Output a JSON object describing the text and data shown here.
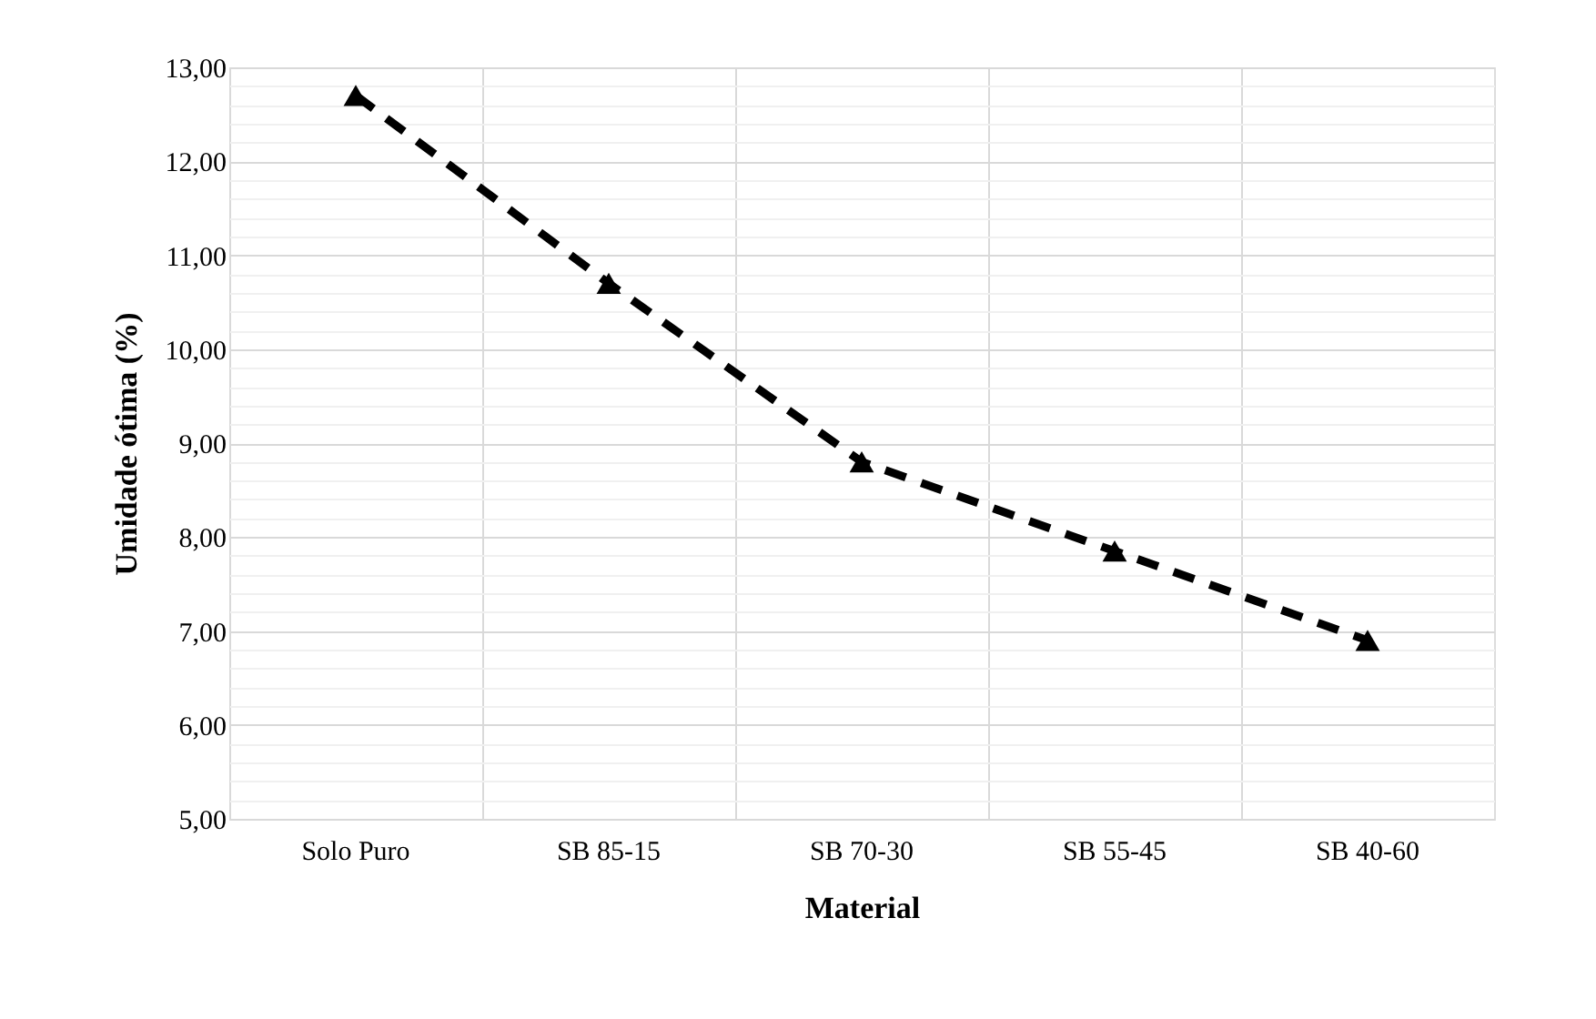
{
  "chart_data": {
    "type": "line",
    "xlabel": "Material",
    "ylabel": "Umidade ótima (%)",
    "categories": [
      "Solo Puro",
      "SB 85-15",
      "SB 70-30",
      "SB 55-45",
      "SB 40-60"
    ],
    "series": [
      {
        "color": "#000000",
        "values": [
          12.7,
          10.7,
          8.8,
          7.85,
          6.9
        ]
      }
    ],
    "ylim": [
      5,
      13
    ],
    "yticks": [
      {
        "value": 5,
        "label": "5,00"
      },
      {
        "value": 6,
        "label": "6,00"
      },
      {
        "value": 7,
        "label": "7,00"
      },
      {
        "value": 8,
        "label": "8,00"
      },
      {
        "value": 9,
        "label": "9,00"
      },
      {
        "value": 10,
        "label": "10,00"
      },
      {
        "value": 11,
        "label": "11,00"
      },
      {
        "value": 12,
        "label": "12,00"
      },
      {
        "value": 13,
        "label": "13,00"
      }
    ],
    "grid": true,
    "marker": "triangle",
    "line_style": "dashed"
  }
}
